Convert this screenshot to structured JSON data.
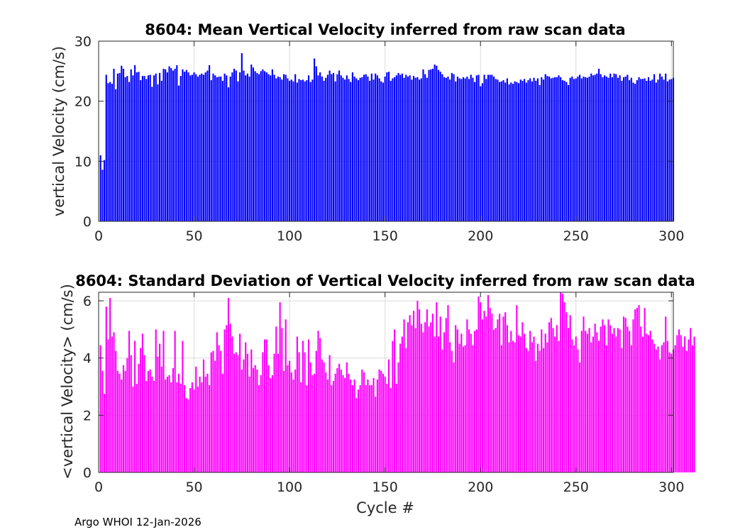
{
  "footer": "Argo WHOI 12-Jan-2026",
  "chart_data": [
    {
      "type": "bar",
      "title": "8604: Mean Vertical Velocity inferred from raw scan data",
      "xlabel": "",
      "ylabel": "vertical Velocity (cm/s)",
      "xlim": [
        0,
        301
      ],
      "ylim": [
        0,
        30
      ],
      "xticks": [
        0,
        50,
        100,
        150,
        200,
        250,
        300
      ],
      "yticks": [
        0,
        10,
        20,
        30
      ],
      "grid": true,
      "color": "#0000ff",
      "x_start": 1,
      "values": [
        11.0,
        8.6,
        10.2,
        24.4,
        23.0,
        23.2,
        22.9,
        25.4,
        22.0,
        24.6,
        24.7,
        25.9,
        25.4,
        24.0,
        24.2,
        23.2,
        25.3,
        24.3,
        26.0,
        24.8,
        24.9,
        23.5,
        24.2,
        24.2,
        23.7,
        24.3,
        24.4,
        22.4,
        24.3,
        24.6,
        22.8,
        24.7,
        23.4,
        25.4,
        25.3,
        24.8,
        25.8,
        25.5,
        25.1,
        25.4,
        26.0,
        22.6,
        24.2,
        25.3,
        24.9,
        25.2,
        24.8,
        24.3,
        24.4,
        24.8,
        24.5,
        24.1,
        24.4,
        24.6,
        24.4,
        24.8,
        25.1,
        26.0,
        23.5,
        24.6,
        24.3,
        24.0,
        24.1,
        24.1,
        23.4,
        24.6,
        24.3,
        22.3,
        24.1,
        24.8,
        25.4,
        25.1,
        23.3,
        24.8,
        28.0,
        25.1,
        24.3,
        24.6,
        24.1,
        26.1,
        25.6,
        25.0,
        24.7,
        24.5,
        25.0,
        25.3,
        25.0,
        24.8,
        24.5,
        24.3,
        25.3,
        24.4,
        23.8,
        24.1,
        24.0,
        23.6,
        24.5,
        24.4,
        23.8,
        23.4,
        23.6,
        23.3,
        24.5,
        23.1,
        23.7,
        23.5,
        23.6,
        23.3,
        23.5,
        24.3,
        23.2,
        23.6,
        27.1,
        25.8,
        24.3,
        24.8,
        24.1,
        23.4,
        23.9,
        24.4,
        25.1,
        24.5,
        24.7,
        23.3,
        24.5,
        25.1,
        24.3,
        23.9,
        23.6,
        24.3,
        23.7,
        23.2,
        24.8,
        24.1,
        23.8,
        23.5,
        23.9,
        24.0,
        24.4,
        24.5,
        24.1,
        23.4,
        24.6,
        23.6,
        24.6,
        24.3,
        23.8,
        23.3,
        23.1,
        24.1,
        24.8,
        24.9,
        23.4,
        23.8,
        24.0,
        24.3,
        24.7,
        24.4,
        24.6,
        23.9,
        24.4,
        24.1,
        24.3,
        23.6,
        24.2,
        23.9,
        24.0,
        23.6,
        23.8,
        25.3,
        24.5,
        23.9,
        25.2,
        25.3,
        25.4,
        26.1,
        25.9,
        25.2,
        24.9,
        24.5,
        24.0,
        23.9,
        24.1,
        23.6,
        24.7,
        24.5,
        23.3,
        24.1,
        23.8,
        23.7,
        24.0,
        23.8,
        24.1,
        23.7,
        24.4,
        23.9,
        23.2,
        24.3,
        24.4,
        22.5,
        23.0,
        24.4,
        23.7,
        24.4,
        24.4,
        24.4,
        24.1,
        23.7,
        23.6,
        23.2,
        23.3,
        23.5,
        23.1,
        23.8,
        22.8,
        23.1,
        22.9,
        23.3,
        23.2,
        23.0,
        23.6,
        23.4,
        23.7,
        23.1,
        23.5,
        23.8,
        23.3,
        23.9,
        23.4,
        23.8,
        22.7,
        24.0,
        23.6,
        24.5,
        24.2,
        24.1,
        23.8,
        23.9,
        24.0,
        24.0,
        24.3,
        24.0,
        23.5,
        23.4,
        23.2,
        22.7,
        23.9,
        24.1,
        23.7,
        23.8,
        24.1,
        24.4,
        23.8,
        24.1,
        24.0,
        23.9,
        24.1,
        24.6,
        24.3,
        24.4,
        24.6,
        25.4,
        24.5,
        24.0,
        24.3,
        24.1,
        23.9,
        24.6,
        24.0,
        24.6,
        24.5,
        23.9,
        24.3,
        23.4,
        24.0,
        24.1,
        24.4,
        23.5,
        23.9,
        23.1,
        22.9,
        23.5,
        24.0,
        23.7,
        23.7,
        23.8,
        23.4,
        24.0,
        23.4,
        23.6,
        24.5,
        23.1,
        23.6,
        24.6,
        24.1,
        23.6,
        24.6,
        23.3,
        23.6,
        23.7,
        23.9
      ]
    },
    {
      "type": "bar",
      "title": "8604: Standard Deviation of Vertical Velocity inferred from raw scan data",
      "xlabel": "Cycle #",
      "ylabel": "<vertical Velocity> (cm/s)",
      "xlim": [
        0,
        301
      ],
      "ylim": [
        0,
        6.3
      ],
      "xticks": [
        0,
        50,
        100,
        150,
        200,
        250,
        300
      ],
      "yticks": [
        0,
        2,
        4,
        6
      ],
      "grid": true,
      "color": "#ff00ff",
      "x_start": 1,
      "values": [
        4.45,
        3.55,
        2.75,
        5.8,
        4.65,
        6.1,
        4.75,
        4.9,
        4.25,
        3.55,
        3.45,
        3.25,
        3.75,
        3.55,
        4.0,
        4.95,
        4.1,
        3.0,
        4.6,
        3.1,
        3.8,
        4.35,
        4.85,
        4.1,
        3.2,
        3.55,
        3.6,
        3.35,
        3.2,
        5.0,
        4.05,
        4.5,
        3.7,
        4.95,
        3.25,
        3.35,
        3.4,
        3.15,
        3.65,
        4.95,
        3.15,
        3.45,
        3.1,
        4.6,
        3.05,
        2.6,
        2.55,
        2.95,
        3.15,
        2.9,
        3.7,
        3.0,
        3.35,
        3.15,
        3.95,
        3.35,
        3.45,
        3.05,
        4.2,
        4.25,
        3.9,
        4.9,
        4.45,
        4.25,
        3.45,
        5.0,
        5.15,
        6.1,
        5.2,
        4.75,
        4.15,
        4.2,
        4.1,
        4.85,
        3.6,
        3.95,
        4.55,
        4.15,
        3.35,
        4.3,
        3.65,
        3.75,
        3.6,
        3.05,
        3.4,
        4.2,
        4.65,
        4.65,
        3.75,
        3.3,
        3.4,
        4.15,
        5.1,
        4.15,
        5.95,
        5.05,
        3.55,
        5.35,
        3.75,
        3.9,
        3.5,
        3.25,
        3.6,
        4.75,
        4.2,
        3.15,
        4.6,
        4.2,
        3.05,
        4.65,
        3.85,
        3.4,
        3.45,
        4.25,
        4.95,
        4.7,
        3.95,
        3.85,
        3.5,
        3.25,
        4.1,
        3.05,
        3.2,
        3.45,
        3.65,
        3.8,
        3.6,
        3.4,
        3.3,
        3.85,
        3.45,
        3.25,
        3.05,
        3.25,
        2.6,
        2.9,
        3.05,
        3.6,
        3.5,
        3.05,
        3.25,
        3.05,
        3.05,
        3.3,
        2.65,
        3.25,
        3.6,
        3.55,
        3.45,
        3.35,
        3.1,
        3.95,
        2.95,
        4.6,
        5.0,
        3.1,
        3.85,
        4.5,
        4.75,
        5.35,
        4.35,
        5.25,
        5.5,
        5.15,
        5.65,
        5.05,
        6.0,
        5.7,
        5.2,
        4.9,
        5.25,
        5.7,
        5.1,
        5.25,
        5.55,
        4.75,
        5.95,
        4.75,
        5.45,
        4.3,
        4.9,
        5.4,
        5.85,
        4.55,
        4.25,
        3.85,
        5.15,
        5.0,
        4.5,
        4.85,
        4.4,
        4.45,
        5.35,
        5.0,
        4.85,
        4.45,
        4.95,
        5.0,
        6.15,
        5.95,
        5.35,
        5.65,
        5.45,
        6.2,
        5.75,
        5.55,
        5.0,
        5.05,
        5.35,
        5.55,
        4.45,
        5.45,
        5.6,
        5.15,
        4.55,
        4.95,
        4.6,
        4.55,
        5.85,
        4.8,
        4.75,
        5.25,
        4.85,
        4.35,
        4.25,
        4.95,
        4.55,
        4.75,
        3.9,
        4.5,
        4.25,
        5.0,
        4.35,
        4.85,
        4.55,
        5.25,
        5.4,
        5.05,
        4.75,
        5.15,
        4.6,
        6.3,
        6.25,
        5.95,
        5.6,
        5.05,
        5.5,
        4.65,
        4.45,
        4.75,
        4.3,
        3.85,
        4.95,
        5.45,
        4.95,
        4.85,
        5.05,
        4.55,
        4.75,
        5.2,
        4.9,
        4.6,
        5.1,
        5.35,
        5.15,
        4.45,
        5.35,
        5.15,
        4.85,
        5.05,
        4.75,
        5.05,
        5.0,
        4.35,
        5.45,
        5.4,
        5.1,
        4.95,
        4.45,
        5.35,
        5.7,
        5.75,
        5.85,
        5.1,
        4.75,
        5.75,
        4.85,
        4.8,
        4.95,
        4.65,
        4.5,
        4.3,
        4.4,
        3.95,
        4.45,
        4.55,
        5.45,
        4.6,
        4.2,
        4.15,
        4.3,
        4.45,
        4.8,
        5.0,
        4.8,
        4.4,
        4.75,
        4.25,
        4.65,
        5.05,
        4.45,
        4.75
      ]
    }
  ]
}
